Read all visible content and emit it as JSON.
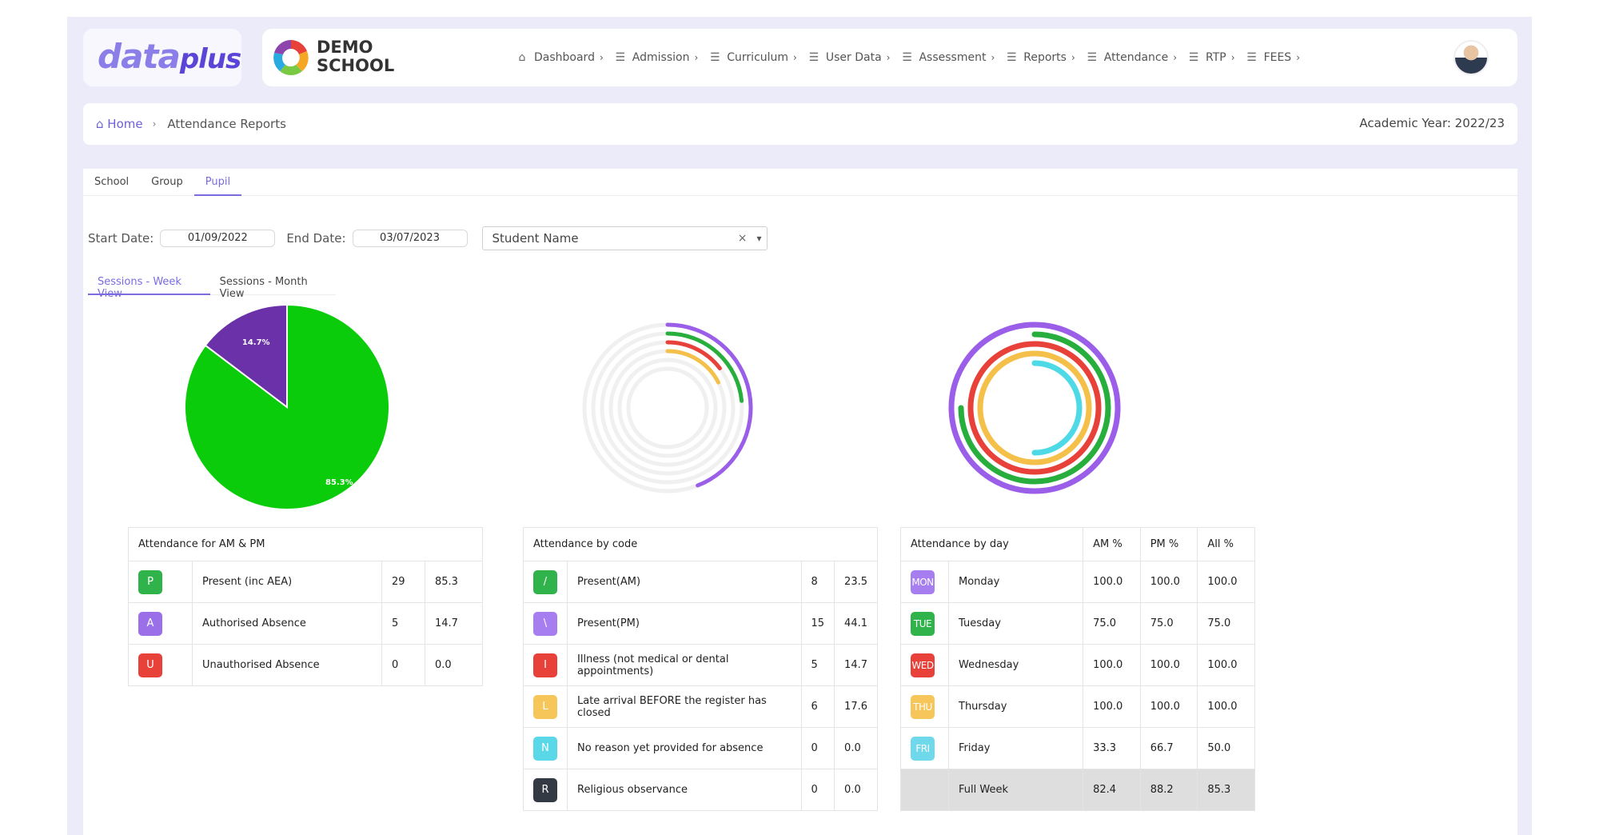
{
  "brand": {
    "logo_main": "data",
    "logo_accent": "plus",
    "school_line1": "DEMO",
    "school_line2": "SCHOOL"
  },
  "nav": [
    {
      "label": "Dashboard",
      "icon": "home-icon"
    },
    {
      "label": "Admission",
      "icon": "menu-icon"
    },
    {
      "label": "Curriculum",
      "icon": "menu-icon"
    },
    {
      "label": "User Data",
      "icon": "menu-icon"
    },
    {
      "label": "Assessment",
      "icon": "menu-icon"
    },
    {
      "label": "Reports",
      "icon": "menu-icon"
    },
    {
      "label": "Attendance",
      "icon": "menu-icon"
    },
    {
      "label": "RTP",
      "icon": "menu-icon"
    },
    {
      "label": "FEES",
      "icon": "menu-icon"
    }
  ],
  "breadcrumb": {
    "home": "Home",
    "current": "Attendance Reports",
    "academic_year": "Academic Year: 2022/23"
  },
  "tabs": [
    "School",
    "Group",
    "Pupil"
  ],
  "filters": {
    "start_label": "Start Date:",
    "start_value": "01/09/2022",
    "end_label": "End Date:",
    "end_value": "03/07/2023",
    "student_placeholder": "Student Name"
  },
  "subtabs": [
    "Sessions - Week View",
    "Sessions - Month View"
  ],
  "chart_data": [
    {
      "type": "pie",
      "categories": [
        "Present (inc AEA)",
        "Authorised Absence"
      ],
      "values": [
        85.3,
        14.7
      ],
      "labels": [
        "85.3%",
        "14.7%"
      ],
      "colors": [
        "#0bcc0b",
        "#6a31a8"
      ]
    },
    {
      "type": "radial-bar",
      "categories": [
        "Present(PM)",
        "Present(AM)",
        "Illness (not medical or dental appointments)",
        "Late arrival BEFORE the register has closed",
        "No reason yet provided for absence",
        "Religious observance"
      ],
      "values": [
        44.1,
        23.5,
        14.7,
        17.6,
        0.0,
        0.0
      ],
      "colors": [
        "#9b5ee8",
        "#27ae3c",
        "#e8413a",
        "#f5c04a",
        "#4dd9e6",
        "#333333"
      ]
    },
    {
      "type": "radial-bar",
      "categories": [
        "Monday",
        "Tuesday",
        "Wednesday",
        "Thursday",
        "Friday"
      ],
      "values": [
        100.0,
        75.0,
        100.0,
        100.0,
        50.0
      ],
      "colors": [
        "#9b5ee8",
        "#27ae3c",
        "#e8413a",
        "#f5c04a",
        "#4dd9e6"
      ]
    }
  ],
  "table_ampm": {
    "title": "Attendance for AM & PM",
    "rows": [
      {
        "code": "P",
        "color": "#2fb34a",
        "label": "Present (inc AEA)",
        "count": "29",
        "pct": "85.3"
      },
      {
        "code": "A",
        "color": "#9b6fe8",
        "label": "Authorised Absence",
        "count": "5",
        "pct": "14.7"
      },
      {
        "code": "U",
        "color": "#e8413a",
        "label": "Unauthorised Absence",
        "count": "0",
        "pct": "0.0"
      }
    ]
  },
  "table_code": {
    "title": "Attendance by code",
    "rows": [
      {
        "code": "/",
        "color": "#2fb34a",
        "label": "Present(AM)",
        "count": "8",
        "pct": "23.5"
      },
      {
        "code": "\\",
        "color": "#a77ef0",
        "label": "Present(PM)",
        "count": "15",
        "pct": "44.1"
      },
      {
        "code": "I",
        "color": "#e8413a",
        "label": "Illness (not medical or dental appointments)",
        "count": "5",
        "pct": "14.7"
      },
      {
        "code": "L",
        "color": "#f7c65a",
        "label": "Late arrival BEFORE the register has closed",
        "count": "6",
        "pct": "17.6"
      },
      {
        "code": "N",
        "color": "#5ad8e8",
        "label": "No reason yet provided for absence",
        "count": "0",
        "pct": "0.0"
      },
      {
        "code": "R",
        "color": "#333a44",
        "label": "Religious observance",
        "count": "0",
        "pct": "0.0"
      }
    ]
  },
  "table_day": {
    "title": "Attendance by day",
    "headers": [
      "AM %",
      "PM %",
      "All %"
    ],
    "rows": [
      {
        "code": "MON",
        "color": "#a77ef0",
        "label": "Monday",
        "am": "100.0",
        "pm": "100.0",
        "all": "100.0"
      },
      {
        "code": "TUE",
        "color": "#2fb34a",
        "label": "Tuesday",
        "am": "75.0",
        "pm": "75.0",
        "all": "75.0"
      },
      {
        "code": "WED",
        "color": "#e8413a",
        "label": "Wednesday",
        "am": "100.0",
        "pm": "100.0",
        "all": "100.0"
      },
      {
        "code": "THU",
        "color": "#f7c65a",
        "label": "Thursday",
        "am": "100.0",
        "pm": "100.0",
        "all": "100.0"
      },
      {
        "code": "FRI",
        "color": "#6fd8ea",
        "label": "Friday",
        "am": "33.3",
        "pm": "66.7",
        "all": "50.0"
      }
    ],
    "total": {
      "label": "Full Week",
      "am": "82.4",
      "pm": "88.2",
      "all": "85.3"
    }
  }
}
